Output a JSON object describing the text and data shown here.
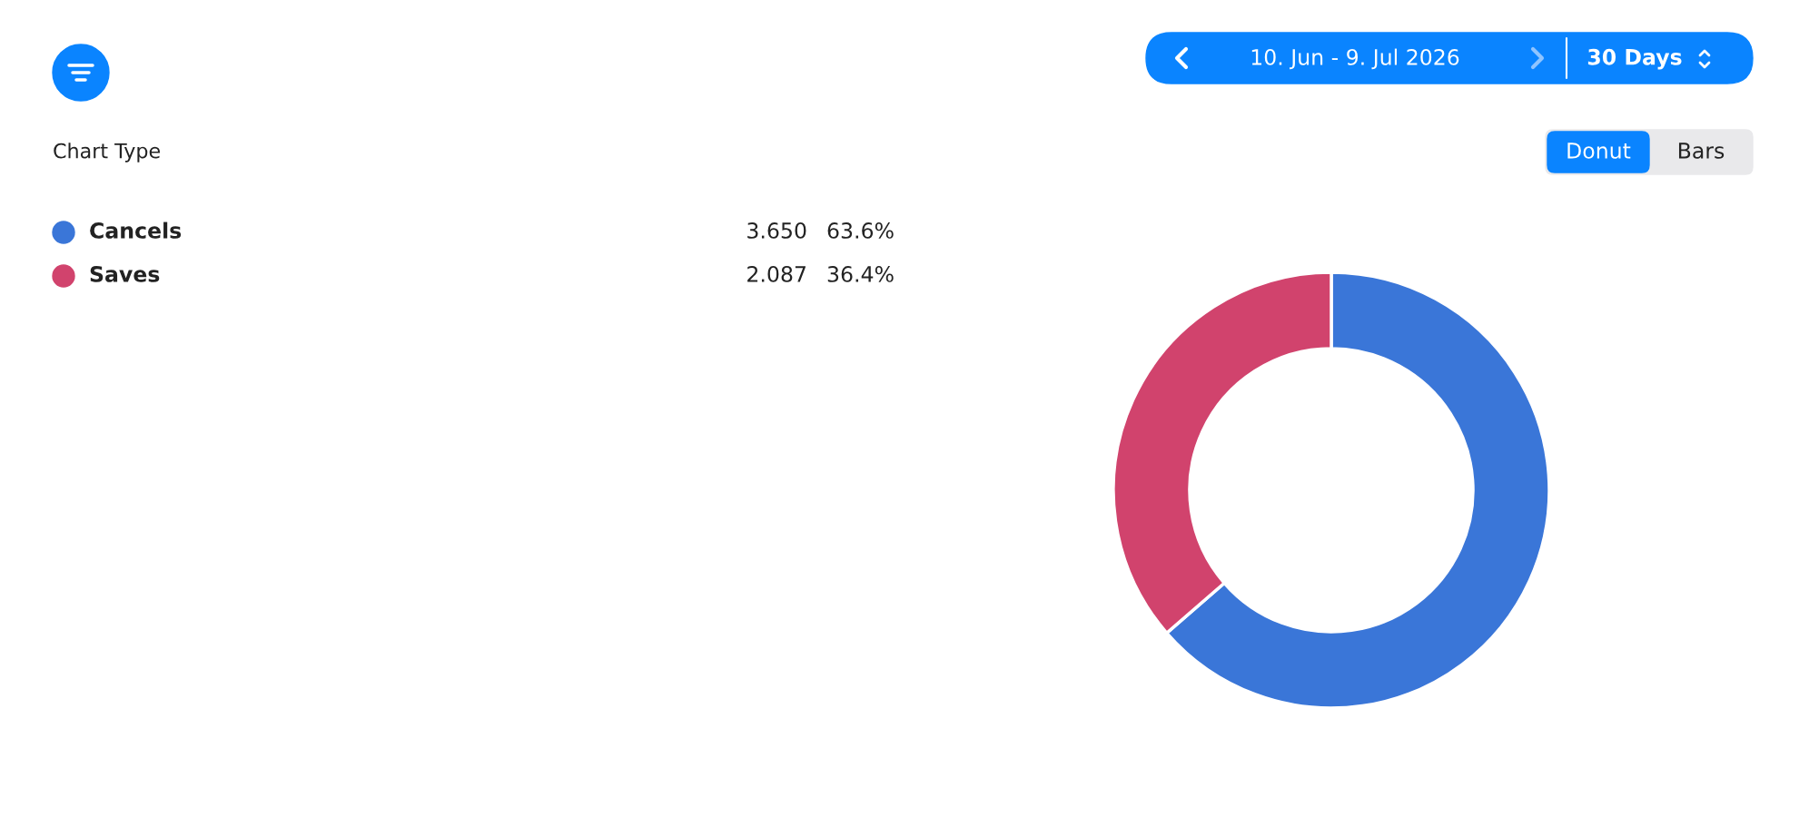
{
  "chart_data": {
    "type": "donut",
    "categories": [
      "Cancels",
      "Saves"
    ],
    "values": [
      3.65,
      2.087
    ],
    "value_labels": [
      "3.650",
      "2.087"
    ],
    "colors": [
      "#3a76d8",
      "#d1436d"
    ],
    "legend": "left",
    "annotations": [
      "10. Jun - 9. Jul 2026",
      "30 Days",
      "Chart Type",
      "Donut",
      "Bars",
      "63.6%",
      "36.4%"
    ]
  }
}
